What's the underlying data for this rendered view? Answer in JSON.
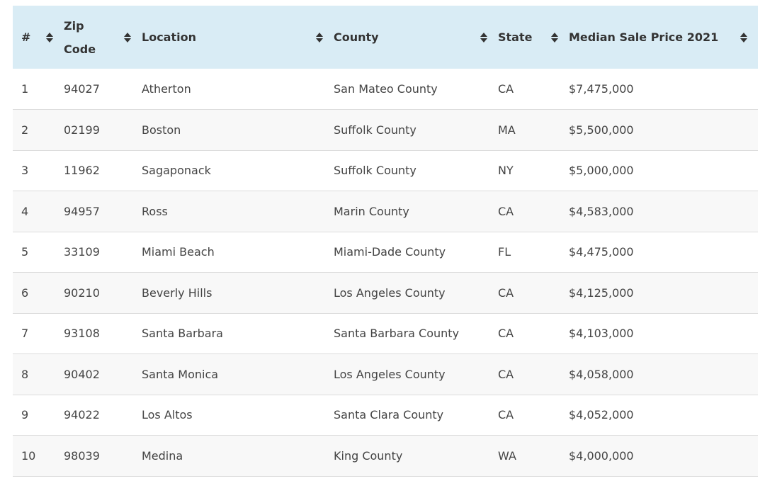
{
  "table": {
    "columns": [
      {
        "key": "rank",
        "label": "#"
      },
      {
        "key": "zip",
        "label": "Zip Code",
        "line1": "Zip",
        "line2": "Code"
      },
      {
        "key": "location",
        "label": "Location"
      },
      {
        "key": "county",
        "label": "County"
      },
      {
        "key": "state",
        "label": "State"
      },
      {
        "key": "price",
        "label": "Median Sale Price 2021"
      }
    ],
    "rows": [
      {
        "rank": "1",
        "zip": "94027",
        "location": "Atherton",
        "county": "San Mateo County",
        "state": "CA",
        "price": "$7,475,000"
      },
      {
        "rank": "2",
        "zip": "02199",
        "location": "Boston",
        "county": "Suffolk County",
        "state": "MA",
        "price": "$5,500,000"
      },
      {
        "rank": "3",
        "zip": "11962",
        "location": "Sagaponack",
        "county": "Suffolk County",
        "state": "NY",
        "price": "$5,000,000"
      },
      {
        "rank": "4",
        "zip": "94957",
        "location": "Ross",
        "county": "Marin County",
        "state": "CA",
        "price": "$4,583,000"
      },
      {
        "rank": "5",
        "zip": "33109",
        "location": "Miami Beach",
        "county": "Miami-Dade County",
        "state": "FL",
        "price": "$4,475,000"
      },
      {
        "rank": "6",
        "zip": "90210",
        "location": "Beverly Hills",
        "county": "Los Angeles County",
        "state": "CA",
        "price": "$4,125,000"
      },
      {
        "rank": "7",
        "zip": "93108",
        "location": "Santa Barbara",
        "county": "Santa Barbara County",
        "state": "CA",
        "price": "$4,103,000"
      },
      {
        "rank": "8",
        "zip": "90402",
        "location": "Santa Monica",
        "county": "Los Angeles County",
        "state": "CA",
        "price": "$4,058,000"
      },
      {
        "rank": "9",
        "zip": "94022",
        "location": "Los Altos",
        "county": "Santa Clara County",
        "state": "CA",
        "price": "$4,052,000"
      },
      {
        "rank": "10",
        "zip": "98039",
        "location": "Medina",
        "county": "King County",
        "state": "WA",
        "price": "$4,000,000"
      }
    ]
  },
  "colors": {
    "header_bg": "#d9ecf5",
    "stripe_bg": "#f8f8f8",
    "row_border": "#dcdcdc",
    "text": "#444444"
  },
  "icons": {
    "sort": "sort-both-icon"
  }
}
